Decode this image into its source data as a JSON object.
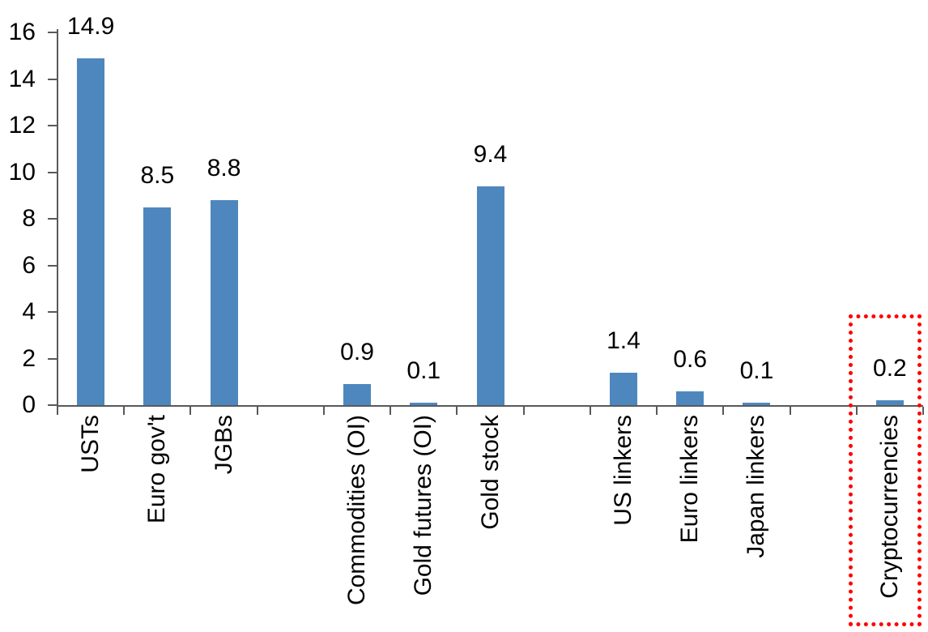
{
  "chart_data": {
    "type": "bar",
    "title": "",
    "xlabel": "",
    "ylabel": "",
    "categories": [
      "USTs",
      "Euro gov't",
      "JGBs",
      "",
      "Commodities (OI)",
      "Gold futures (OI)",
      "Gold stock",
      "",
      "US linkers",
      "Euro linkers",
      "Japan linkers",
      "",
      "Cryptocurrencies"
    ],
    "values": [
      14.9,
      8.5,
      8.8,
      null,
      0.9,
      0.1,
      9.4,
      null,
      1.4,
      0.6,
      0.1,
      null,
      0.2
    ],
    "value_labels": [
      "14.9",
      "8.5",
      "8.8",
      "",
      "0.9",
      "0.1",
      "9.4",
      "",
      "1.4",
      "0.6",
      "0.1",
      "",
      "0.2"
    ],
    "y_ticks": [
      0,
      2,
      4,
      6,
      8,
      10,
      12,
      14,
      16
    ],
    "ylim": [
      0,
      16
    ],
    "grid": false,
    "legend": false,
    "bar_color": "#4e87be",
    "axis_color": "#595959",
    "text_color": "#000000",
    "highlight": {
      "category": "Cryptocurrencies",
      "style": "dotted-box",
      "color": "#ff0000"
    }
  }
}
